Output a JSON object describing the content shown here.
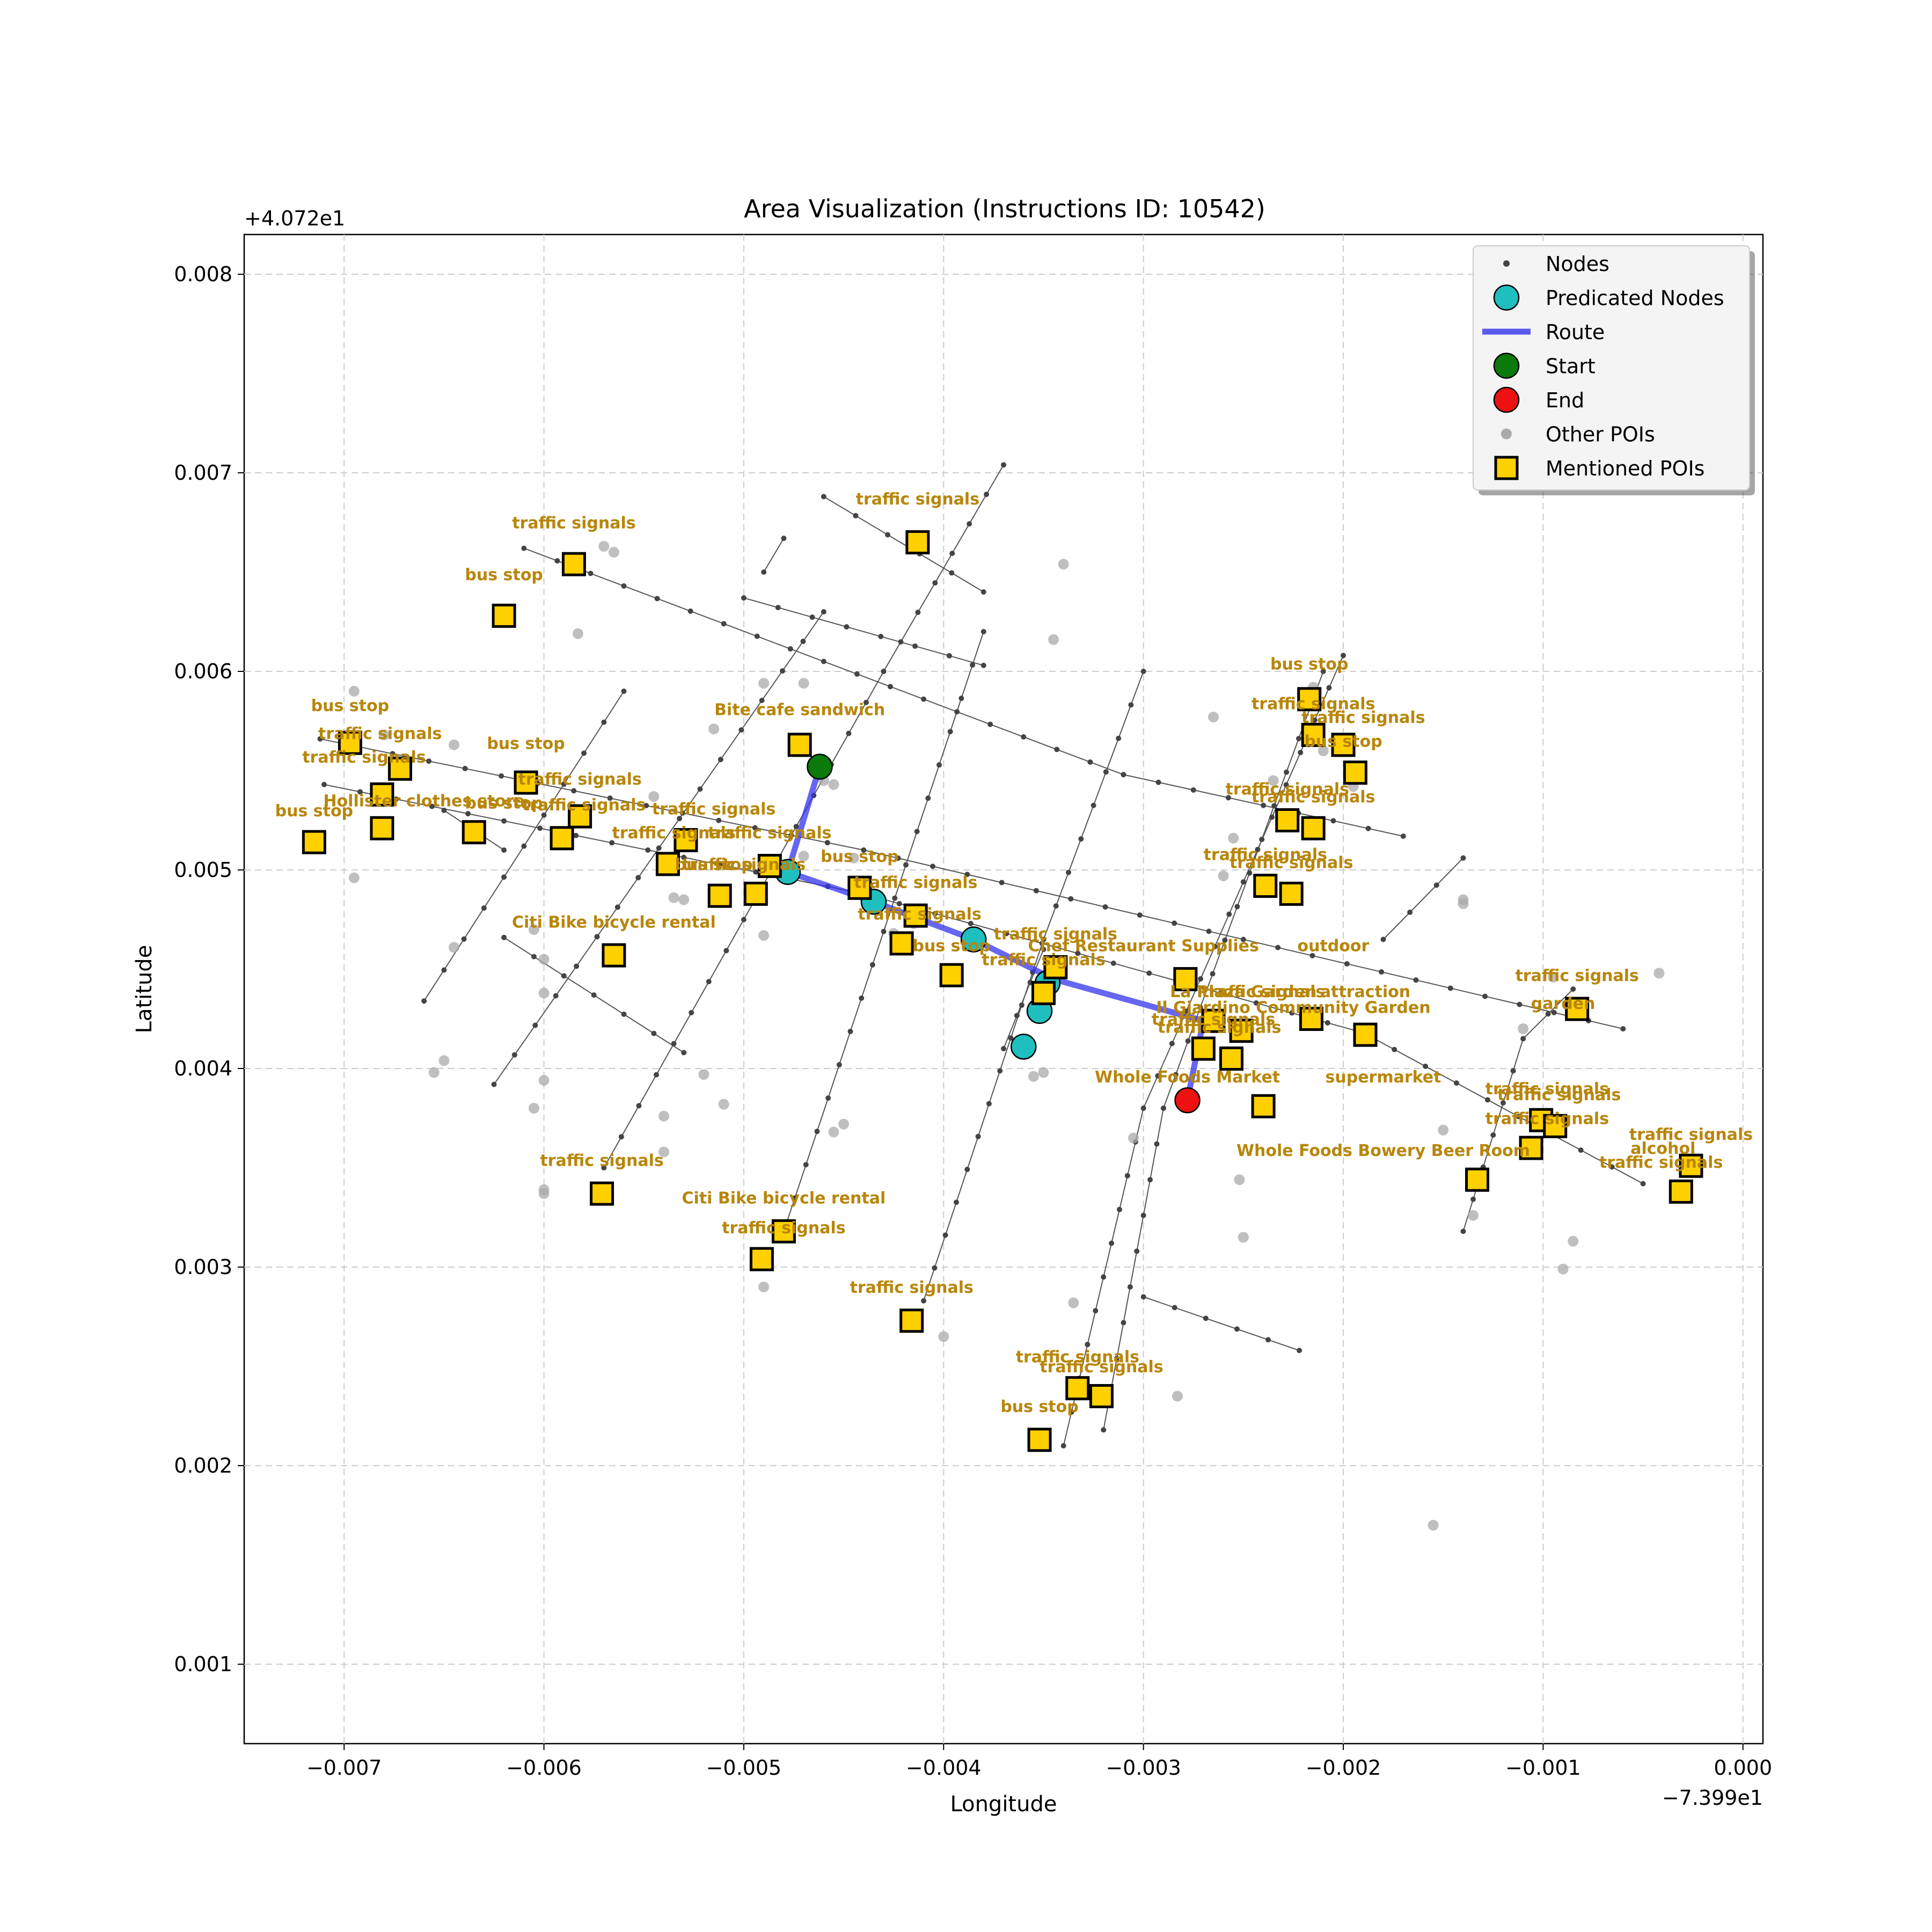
{
  "chart_data": {
    "type": "scatter",
    "title": "Area Visualization (Instructions ID: 10542)",
    "xlabel": "Longitude",
    "ylabel": "Latitude",
    "x_offset_label": "−7.399e1",
    "y_offset_label": "+4.072e1",
    "xlim": [
      -0.0075,
      0.0001
    ],
    "ylim": [
      0.0006,
      0.0082
    ],
    "x_ticks": [
      {
        "value": -0.007,
        "label": "−0.007"
      },
      {
        "value": -0.006,
        "label": "−0.006"
      },
      {
        "value": -0.005,
        "label": "−0.005"
      },
      {
        "value": -0.004,
        "label": "−0.004"
      },
      {
        "value": -0.003,
        "label": "−0.003"
      },
      {
        "value": -0.002,
        "label": "−0.002"
      },
      {
        "value": -0.001,
        "label": "−0.001"
      },
      {
        "value": 0.0,
        "label": "0.000"
      }
    ],
    "y_ticks": [
      {
        "value": 0.001,
        "label": "0.001"
      },
      {
        "value": 0.002,
        "label": "0.002"
      },
      {
        "value": 0.003,
        "label": "0.003"
      },
      {
        "value": 0.004,
        "label": "0.004"
      },
      {
        "value": 0.005,
        "label": "0.005"
      },
      {
        "value": 0.006,
        "label": "0.006"
      },
      {
        "value": 0.007,
        "label": "0.007"
      },
      {
        "value": 0.008,
        "label": "0.008"
      }
    ],
    "grid": true,
    "legend_position": "top-right",
    "legend": [
      {
        "label": "Nodes",
        "marker": "small-dot",
        "color": "#444444"
      },
      {
        "label": "Predicated Nodes",
        "marker": "circle",
        "color": "#1fbfbf"
      },
      {
        "label": "Route",
        "marker": "line",
        "color": "#3333ee"
      },
      {
        "label": "Start",
        "marker": "circle",
        "color": "#0a7a0a"
      },
      {
        "label": "End",
        "marker": "circle",
        "color": "#ee1111"
      },
      {
        "label": "Other POIs",
        "marker": "gray-dot",
        "color": "#aaaaaa"
      },
      {
        "label": "Mentioned POIs",
        "marker": "square",
        "color": "#ffd000"
      }
    ],
    "colors": {
      "nodes": "#444444",
      "edges": "#555555",
      "predicated": "#1fbfbf",
      "route": "#3333ee",
      "start": "#0a7a0a",
      "end": "#ee1111",
      "other_poi": "#aaaaaa",
      "mentioned_poi": "#ffd000",
      "poi_label": "#b8860b"
    },
    "streets": [
      [
        [
          -0.00712,
          0.00566
        ],
        [
          -0.0044,
          0.0051
        ],
        [
          -0.0006,
          0.0042
        ]
      ],
      [
        [
          -0.0071,
          0.00543
        ],
        [
          -0.0044,
          0.00488
        ],
        [
          -0.0019,
          0.00418
        ],
        [
          -0.0005,
          0.00342
        ]
      ],
      [
        [
          -0.0061,
          0.00662
        ],
        [
          -0.0031,
          0.00548
        ],
        [
          -0.0017,
          0.00517
        ]
      ],
      [
        [
          -0.005,
          0.00637
        ],
        [
          -0.0038,
          0.00603
        ]
      ],
      [
        [
          -0.0046,
          0.00688
        ],
        [
          -0.0038,
          0.0064
        ]
      ],
      [
        [
          -0.0065,
          0.0053
        ],
        [
          -0.0062,
          0.0051
        ]
      ],
      [
        [
          -0.0066,
          0.00434
        ],
        [
          -0.0056,
          0.0059
        ]
      ],
      [
        [
          -0.00625,
          0.00392
        ],
        [
          -0.0046,
          0.0063
        ]
      ],
      [
        [
          -0.0057,
          0.0035
        ],
        [
          -0.0043,
          0.006
        ],
        [
          -0.0037,
          0.00704
        ]
      ],
      [
        [
          -0.0062,
          0.00466
        ],
        [
          -0.0053,
          0.00408
        ]
      ],
      [
        [
          -0.0049,
          0.0065
        ],
        [
          -0.0048,
          0.00667
        ]
      ],
      [
        [
          -0.0048,
          0.00318
        ],
        [
          -0.0038,
          0.0062
        ]
      ],
      [
        [
          -0.0041,
          0.00283
        ],
        [
          -0.0035,
          0.00465
        ],
        [
          -0.003,
          0.006
        ]
      ],
      [
        [
          -0.0034,
          0.0021
        ],
        [
          -0.003,
          0.0038
        ],
        [
          -0.002,
          0.00608
        ]
      ],
      [
        [
          -0.0032,
          0.00218
        ],
        [
          -0.0029,
          0.0038
        ],
        [
          -0.0021,
          0.006
        ]
      ],
      [
        [
          -0.003,
          0.00285
        ],
        [
          -0.00222,
          0.00258
        ]
      ],
      [
        [
          -0.0014,
          0.00318
        ],
        [
          -0.0011,
          0.00415
        ],
        [
          -0.00085,
          0.0044
        ]
      ],
      [
        [
          -0.0018,
          0.00465
        ],
        [
          -0.0014,
          0.00506
        ]
      ],
      [
        [
          -0.0037,
          0.0041
        ],
        [
          -0.0035,
          0.0046
        ]
      ]
    ],
    "nodes_sample_step": 0.00018,
    "route": [
      [
        -0.00462,
        0.00552
      ],
      [
        -0.00478,
        0.00499
      ],
      [
        -0.00435,
        0.00484
      ],
      [
        -0.00385,
        0.00465
      ],
      [
        -0.00345,
        0.00445
      ],
      [
        -0.0027,
        0.00424
      ],
      [
        -0.00278,
        0.00384
      ]
    ],
    "predicated_nodes": [
      [
        -0.00478,
        0.00499
      ],
      [
        -0.00435,
        0.00484
      ],
      [
        -0.00385,
        0.00465
      ],
      [
        -0.00348,
        0.00443
      ],
      [
        -0.00352,
        0.00429
      ],
      [
        -0.0036,
        0.00411
      ]
    ],
    "start": [
      -0.00462,
      0.00552
    ],
    "end": [
      -0.00278,
      0.00384
    ],
    "other_pois": [
      [
        -0.00695,
        0.0059
      ],
      [
        -0.00695,
        0.00496
      ],
      [
        -0.0068,
        0.00568
      ],
      [
        -0.00645,
        0.00563
      ],
      [
        -0.00645,
        0.00461
      ],
      [
        -0.0065,
        0.00404
      ],
      [
        -0.00655,
        0.00398
      ],
      [
        -0.00605,
        0.0038
      ],
      [
        -0.00605,
        0.0047
      ],
      [
        -0.006,
        0.00455
      ],
      [
        -0.006,
        0.00438
      ],
      [
        -0.006,
        0.00394
      ],
      [
        -0.006,
        0.00339
      ],
      [
        -0.006,
        0.00337
      ],
      [
        -0.00583,
        0.00619
      ],
      [
        -0.0057,
        0.00663
      ],
      [
        -0.00565,
        0.0066
      ],
      [
        -0.00545,
        0.00537
      ],
      [
        -0.0054,
        0.00376
      ],
      [
        -0.0054,
        0.00358
      ],
      [
        -0.00535,
        0.00486
      ],
      [
        -0.0053,
        0.00485
      ],
      [
        -0.00515,
        0.00571
      ],
      [
        -0.0052,
        0.00397
      ],
      [
        -0.0051,
        0.00382
      ],
      [
        -0.0049,
        0.00594
      ],
      [
        -0.0049,
        0.00467
      ],
      [
        -0.0049,
        0.0029
      ],
      [
        -0.0047,
        0.00507
      ],
      [
        -0.0046,
        0.00545
      ],
      [
        -0.00455,
        0.00543
      ],
      [
        -0.00455,
        0.00368
      ],
      [
        -0.0045,
        0.00372
      ],
      [
        -0.0047,
        0.00594
      ],
      [
        -0.00445,
        0.00506
      ],
      [
        -0.00425,
        0.00468
      ],
      [
        -0.00415,
        0.00473
      ],
      [
        -0.004,
        0.00265
      ],
      [
        -0.00355,
        0.00396
      ],
      [
        -0.0035,
        0.00398
      ],
      [
        -0.00345,
        0.00616
      ],
      [
        -0.0034,
        0.00654
      ],
      [
        -0.00335,
        0.00282
      ],
      [
        -0.00305,
        0.00365
      ],
      [
        -0.00275,
        0.00443
      ],
      [
        -0.00265,
        0.00577
      ],
      [
        -0.0026,
        0.00497
      ],
      [
        -0.00255,
        0.00516
      ],
      [
        -0.0025,
        0.00315
      ],
      [
        -0.00252,
        0.00344
      ],
      [
        -0.00235,
        0.00545
      ],
      [
        -0.00215,
        0.00592
      ],
      [
        -0.0021,
        0.0056
      ],
      [
        -0.00195,
        0.00542
      ],
      [
        -0.0015,
        0.00369
      ],
      [
        -0.0014,
        0.00485
      ],
      [
        -0.0014,
        0.00483
      ],
      [
        -0.00135,
        0.00326
      ],
      [
        -0.0011,
        0.0042
      ],
      [
        -0.00095,
        0.00446
      ],
      [
        -0.0009,
        0.00299
      ],
      [
        -0.00085,
        0.00313
      ],
      [
        -0.00042,
        0.00448
      ],
      [
        -0.00155,
        0.0017
      ],
      [
        -0.00283,
        0.00235
      ]
    ],
    "mentioned_pois": [
      {
        "x": -0.00585,
        "y": 0.00654,
        "label": "traffic signals",
        "lx": -0.00585,
        "ly": 0.00672
      },
      {
        "x": -0.00413,
        "y": 0.00665,
        "label": "traffic signals",
        "lx": -0.00413,
        "ly": 0.00684
      },
      {
        "x": -0.0062,
        "y": 0.00628,
        "label": "bus stop",
        "lx": -0.0062,
        "ly": 0.00646
      },
      {
        "x": -0.00697,
        "y": 0.00564,
        "label": "bus stop",
        "lx": -0.00697,
        "ly": 0.0058
      },
      {
        "x": -0.00672,
        "y": 0.00551,
        "label": "traffic signals",
        "lx": -0.00682,
        "ly": 0.00566
      },
      {
        "x": -0.00681,
        "y": 0.00538,
        "label": "traffic signals",
        "lx": -0.0069,
        "ly": 0.00554
      },
      {
        "x": -0.00681,
        "y": 0.00521,
        "label": "Hollister clothes store",
        "lx": -0.0066,
        "ly": 0.00532
      },
      {
        "x": -0.00715,
        "y": 0.00514,
        "label": "bus stop",
        "lx": -0.00715,
        "ly": 0.00527
      },
      {
        "x": -0.00609,
        "y": 0.00544,
        "label": "bus stop",
        "lx": -0.00609,
        "ly": 0.00561
      },
      {
        "x": -0.00582,
        "y": 0.00527,
        "label": "traffic signals",
        "lx": -0.00582,
        "ly": 0.00543
      },
      {
        "x": -0.00635,
        "y": 0.00519,
        "label": "bus stop",
        "lx": -0.0062,
        "ly": 0.00531
      },
      {
        "x": -0.00591,
        "y": 0.00516,
        "label": "traffic signals",
        "lx": -0.0058,
        "ly": 0.0053
      },
      {
        "x": -0.00529,
        "y": 0.00515,
        "label": "traffic signals",
        "lx": -0.00515,
        "ly": 0.00528
      },
      {
        "x": -0.00538,
        "y": 0.00503,
        "label": "traffic signals",
        "lx": -0.00535,
        "ly": 0.00516
      },
      {
        "x": -0.00487,
        "y": 0.00502,
        "label": "traffic signals",
        "lx": -0.00487,
        "ly": 0.00516
      },
      {
        "x": -0.00472,
        "y": 0.00563,
        "label": "Bite cafe sandwich",
        "lx": -0.00472,
        "ly": 0.00578
      },
      {
        "x": -0.00512,
        "y": 0.00487,
        "label": "traffic signals",
        "lx": -0.005,
        "ly": 0.005
      },
      {
        "x": -0.00494,
        "y": 0.00488,
        "label": "bus stop",
        "lx": -0.00515,
        "ly": 0.005
      },
      {
        "x": -0.00442,
        "y": 0.00491,
        "label": "bus stop",
        "lx": -0.00442,
        "ly": 0.00504
      },
      {
        "x": -0.00414,
        "y": 0.00477,
        "label": "traffic signals",
        "lx": -0.00414,
        "ly": 0.00491
      },
      {
        "x": -0.00421,
        "y": 0.00463,
        "label": "traffic signals",
        "lx": -0.00412,
        "ly": 0.00475
      },
      {
        "x": -0.00396,
        "y": 0.00447,
        "label": "bus stop",
        "lx": -0.00396,
        "ly": 0.00459
      },
      {
        "x": -0.00565,
        "y": 0.00457,
        "label": "Citi Bike bicycle rental",
        "lx": -0.00565,
        "ly": 0.00471
      },
      {
        "x": -0.00344,
        "y": 0.00451,
        "label": "traffic signals",
        "lx": -0.00344,
        "ly": 0.00465
      },
      {
        "x": -0.0035,
        "y": 0.00438,
        "label": "traffic signals",
        "lx": -0.0035,
        "ly": 0.00452
      },
      {
        "x": -0.00279,
        "y": 0.00445,
        "label": "Chef Restaurant Supplies",
        "lx": -0.003,
        "ly": 0.00459
      },
      {
        "x": -0.00265,
        "y": 0.00424,
        "label": "La Plaza Garden",
        "lx": -0.0025,
        "ly": 0.00436
      },
      {
        "x": -0.00216,
        "y": 0.00425,
        "label": "traffic signals",
        "lx": -0.0024,
        "ly": 0.00436
      },
      {
        "x": -0.0027,
        "y": 0.0041,
        "label": "traffic signals",
        "lx": -0.00265,
        "ly": 0.00422
      },
      {
        "x": -0.00251,
        "y": 0.00419,
        "label": "Il Giardino Community Garden",
        "lx": -0.00225,
        "ly": 0.00428
      },
      {
        "x": -0.00256,
        "y": 0.00405,
        "label": "traffic signals",
        "lx": -0.00262,
        "ly": 0.00418
      },
      {
        "x": -0.00189,
        "y": 0.00417,
        "label": "attraction",
        "lx": -0.00189,
        "ly": 0.00436
      },
      {
        "x": -0.0024,
        "y": 0.00381,
        "label": "Whole Foods Market",
        "lx": -0.00278,
        "ly": 0.00393
      },
      {
        "x": -0.00228,
        "y": 0.00525,
        "label": "traffic signals",
        "lx": -0.00228,
        "ly": 0.00538
      },
      {
        "x": -0.00215,
        "y": 0.00521,
        "label": "traffic signals",
        "lx": -0.00215,
        "ly": 0.00534
      },
      {
        "x": -0.00239,
        "y": 0.00492,
        "label": "traffic signals",
        "lx": -0.00239,
        "ly": 0.00505
      },
      {
        "x": -0.00226,
        "y": 0.00488,
        "label": "traffic signals",
        "lx": -0.00226,
        "ly": 0.00501
      },
      {
        "x": -0.00217,
        "y": 0.00586,
        "label": "bus stop",
        "lx": -0.00217,
        "ly": 0.00601
      },
      {
        "x": -0.00215,
        "y": 0.00568,
        "label": "traffic signals",
        "lx": -0.00215,
        "ly": 0.00581
      },
      {
        "x": -0.002,
        "y": 0.00563,
        "label": "traffic signals",
        "lx": -0.0019,
        "ly": 0.00574
      },
      {
        "x": -0.00194,
        "y": 0.00549,
        "label": "bus stop",
        "lx": -0.002,
        "ly": 0.00562
      },
      {
        "x": -0.00083,
        "y": 0.0043,
        "label": "traffic signals",
        "lx": -0.00083,
        "ly": 0.00444
      },
      {
        "x": -0.00101,
        "y": 0.00374,
        "label": "traffic signals",
        "lx": -0.00098,
        "ly": 0.00387
      },
      {
        "x": -0.00094,
        "y": 0.00371,
        "label": "traffic signals",
        "lx": -0.00092,
        "ly": 0.00384
      },
      {
        "x": -0.00106,
        "y": 0.0036,
        "label": "traffic signals",
        "lx": -0.00098,
        "ly": 0.00372
      },
      {
        "x": -0.00133,
        "y": 0.00344,
        "label": "Whole Foods Bowery Beer Room",
        "lx": -0.0018,
        "ly": 0.00356
      },
      {
        "x": -0.00026,
        "y": 0.00351,
        "label": "traffic signals",
        "lx": -0.00026,
        "ly": 0.00364
      },
      {
        "x": -0.00031,
        "y": 0.00338,
        "label": "traffic signals",
        "lx": -0.00041,
        "ly": 0.0035
      },
      {
        "x": -0.00571,
        "y": 0.00337,
        "label": "traffic signals",
        "lx": -0.00571,
        "ly": 0.00351
      },
      {
        "x": -0.0048,
        "y": 0.00318,
        "label": "Citi Bike bicycle rental",
        "lx": -0.0048,
        "ly": 0.00332
      },
      {
        "x": -0.00491,
        "y": 0.00304,
        "label": "traffic signals",
        "lx": -0.0048,
        "ly": 0.00317
      },
      {
        "x": -0.00416,
        "y": 0.00273,
        "label": "traffic signals",
        "lx": -0.00416,
        "ly": 0.00287
      },
      {
        "x": -0.00333,
        "y": 0.00239,
        "label": "traffic signals",
        "lx": -0.00333,
        "ly": 0.00252
      },
      {
        "x": -0.00321,
        "y": 0.00235,
        "label": "traffic signals",
        "lx": -0.00321,
        "ly": 0.00247
      },
      {
        "x": -0.00352,
        "y": 0.00213,
        "label": "bus stop",
        "lx": -0.00352,
        "ly": 0.00227
      }
    ],
    "extra_labels": [
      {
        "label": "outdoor",
        "x": -0.00205,
        "y": 0.00459
      },
      {
        "label": "garden",
        "x": -0.0009,
        "y": 0.0043
      },
      {
        "label": "supermarket",
        "x": -0.0018,
        "y": 0.00393
      },
      {
        "label": "alcohol",
        "x": -0.0004,
        "y": 0.00357
      }
    ]
  }
}
